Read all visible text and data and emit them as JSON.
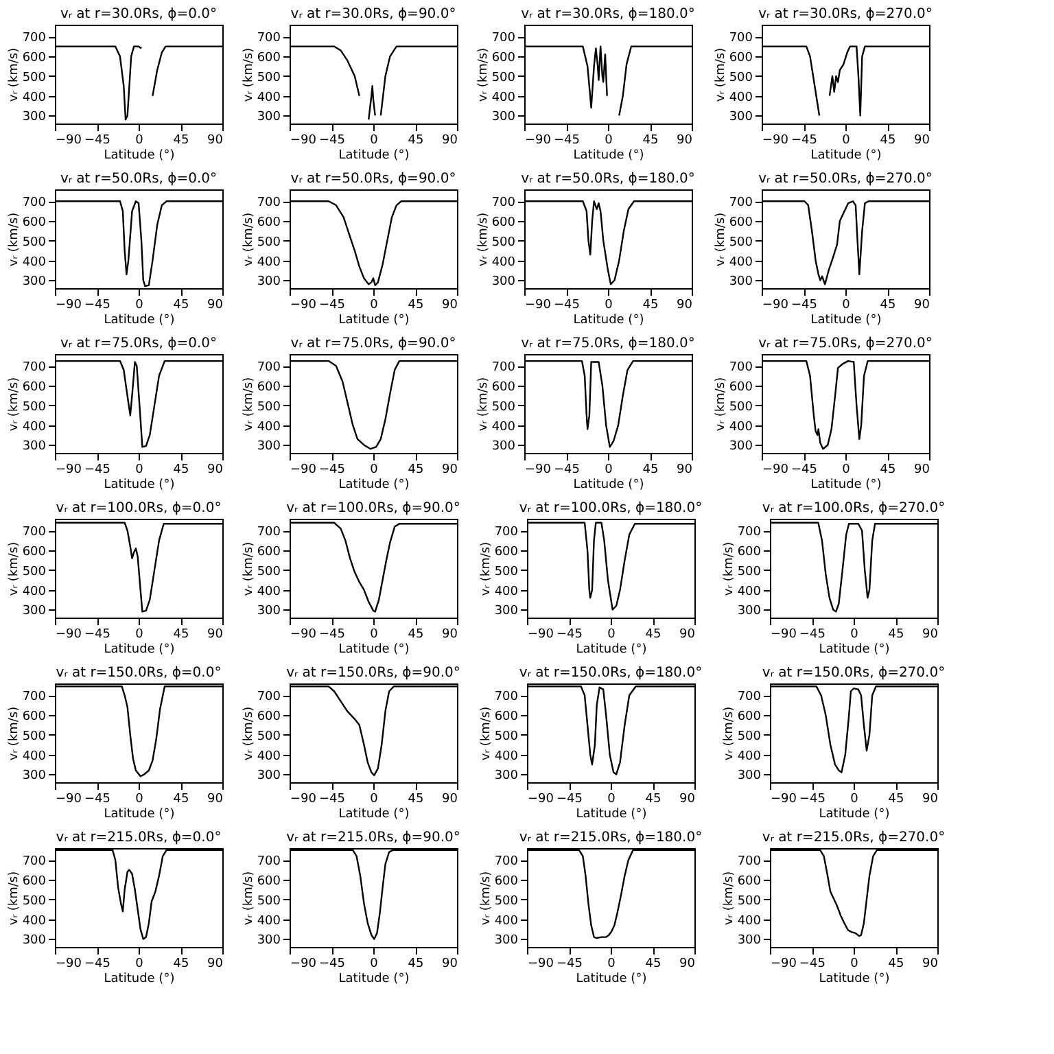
{
  "chart_data": [
    {
      "type": "line",
      "title": "vᵣ at r=30.0Rs, ϕ=0.0°",
      "xlabel": "Latitude (°)",
      "ylabel": "vᵣ (km/s)",
      "color": "#000000",
      "xlim": [
        -90,
        90
      ],
      "xticks": [
        -90,
        -45,
        0,
        45,
        90
      ],
      "ylim": [
        260,
        760
      ],
      "yticks": [
        300,
        400,
        500,
        600,
        700
      ],
      "x": [
        -90,
        -25,
        -20,
        -16,
        -14,
        -12,
        -8,
        -5,
        0,
        3,
        6,
        11,
        15,
        20,
        25,
        29,
        90
      ],
      "values": [
        650,
        650,
        600,
        450,
        280,
        300,
        600,
        650,
        650,
        640,
        null,
        null,
        400,
        530,
        620,
        650,
        650
      ]
    },
    {
      "type": "line",
      "title": "vᵣ at r=30.0Rs, ϕ=90.0°",
      "xlabel": "Latitude (°)",
      "ylabel": "vᵣ (km/s)",
      "color": "#000000",
      "xlim": [
        -90,
        90
      ],
      "xticks": [
        -90,
        -45,
        0,
        45,
        90
      ],
      "ylim": [
        260,
        760
      ],
      "yticks": [
        300,
        400,
        500,
        600,
        700
      ],
      "x": [
        -90,
        -42,
        -35,
        -28,
        -20,
        -15,
        -9,
        -5,
        -2,
        -1,
        0,
        2,
        4,
        8,
        13,
        18,
        25,
        90
      ],
      "values": [
        650,
        650,
        630,
        580,
        500,
        400,
        null,
        280,
        400,
        450,
        380,
        300,
        null,
        300,
        500,
        600,
        650,
        650
      ]
    },
    {
      "type": "line",
      "title": "vᵣ at r=30.0Rs, ϕ=180.0°",
      "xlabel": "Latitude (°)",
      "ylabel": "vᵣ (km/s)",
      "color": "#000000",
      "xlim": [
        -90,
        90
      ],
      "xticks": [
        -90,
        -45,
        0,
        45,
        90
      ],
      "ylim": [
        260,
        760
      ],
      "yticks": [
        300,
        400,
        500,
        600,
        700
      ],
      "x": [
        -90,
        -27,
        -22,
        -18,
        -15,
        -13,
        -11,
        -10,
        -8,
        -6,
        -5,
        -3,
        -1,
        1,
        7,
        12,
        16,
        20,
        25,
        90
      ],
      "values": [
        650,
        650,
        550,
        340,
        550,
        640,
        550,
        480,
        650,
        500,
        470,
        610,
        400,
        null,
        null,
        300,
        400,
        560,
        650,
        650
      ]
    },
    {
      "type": "line",
      "title": "vᵣ at r=30.0Rs, ϕ=270.0°",
      "xlabel": "Latitude (°)",
      "ylabel": "vᵣ (km/s)",
      "color": "#000000",
      "xlim": [
        -90,
        90
      ],
      "xticks": [
        -90,
        -45,
        0,
        45,
        90
      ],
      "ylim": [
        260,
        760
      ],
      "yticks": [
        300,
        400,
        500,
        600,
        700
      ],
      "x": [
        -90,
        -42,
        -38,
        -33,
        -28,
        -26,
        -21,
        -17,
        -14,
        -12,
        -10,
        -8,
        -6,
        -2,
        2,
        5,
        12,
        14,
        16,
        18,
        21,
        90
      ],
      "values": [
        650,
        650,
        600,
        450,
        300,
        null,
        null,
        400,
        500,
        420,
        500,
        470,
        530,
        560,
        620,
        650,
        650,
        500,
        300,
        600,
        650,
        650
      ]
    },
    {
      "type": "line",
      "title": "vᵣ at r=50.0Rs, ϕ=0.0°",
      "xlabel": "Latitude (°)",
      "ylabel": "vᵣ (km/s)",
      "color": "#000000",
      "xlim": [
        -90,
        90
      ],
      "xticks": [
        -90,
        -45,
        0,
        45,
        90
      ],
      "ylim": [
        260,
        760
      ],
      "yticks": [
        300,
        400,
        500,
        600,
        700
      ],
      "x": [
        -90,
        -20,
        -17,
        -15,
        -13,
        -11,
        -7,
        -3,
        0,
        3,
        5,
        7,
        11,
        15,
        20,
        25,
        30,
        90
      ],
      "values": [
        700,
        700,
        650,
        450,
        330,
        400,
        650,
        700,
        690,
        500,
        300,
        270,
        275,
        400,
        580,
        680,
        700,
        700
      ]
    },
    {
      "type": "line",
      "title": "vᵣ at r=50.0Rs, ϕ=90.0°",
      "xlabel": "Latitude (°)",
      "ylabel": "vᵣ (km/s)",
      "color": "#000000",
      "xlim": [
        -90,
        90
      ],
      "xticks": [
        -90,
        -45,
        0,
        45,
        90
      ],
      "ylim": [
        260,
        760
      ],
      "yticks": [
        300,
        400,
        500,
        600,
        700
      ],
      "x": [
        -90,
        -48,
        -40,
        -32,
        -25,
        -20,
        -15,
        -10,
        -5,
        -2,
        0,
        2,
        5,
        10,
        15,
        20,
        25,
        30,
        90
      ],
      "values": [
        700,
        700,
        680,
        620,
        520,
        450,
        370,
        310,
        280,
        290,
        310,
        275,
        290,
        380,
        500,
        620,
        680,
        700,
        700
      ]
    },
    {
      "type": "line",
      "title": "vᵣ at r=50.0Rs, ϕ=180.0°",
      "xlabel": "Latitude (°)",
      "ylabel": "vᵣ (km/s)",
      "color": "#000000",
      "xlim": [
        -90,
        90
      ],
      "xticks": [
        -90,
        -45,
        0,
        45,
        90
      ],
      "ylim": [
        260,
        760
      ],
      "yticks": [
        300,
        400,
        500,
        600,
        700
      ],
      "x": [
        -90,
        -27,
        -23,
        -21,
        -19,
        -17,
        -15,
        -12,
        -10,
        -8,
        -5,
        0,
        3,
        7,
        12,
        17,
        22,
        28,
        90
      ],
      "values": [
        700,
        700,
        650,
        500,
        430,
        600,
        700,
        660,
        690,
        650,
        500,
        350,
        280,
        300,
        400,
        550,
        660,
        700,
        700
      ]
    },
    {
      "type": "line",
      "title": "vᵣ at r=50.0Rs, ϕ=270.0°",
      "xlabel": "Latitude (°)",
      "ylabel": "vᵣ (km/s)",
      "color": "#000000",
      "xlim": [
        -90,
        90
      ],
      "xticks": [
        -90,
        -45,
        0,
        45,
        90
      ],
      "ylim": [
        260,
        760
      ],
      "yticks": [
        300,
        400,
        500,
        600,
        700
      ],
      "x": [
        -90,
        -44,
        -40,
        -36,
        -32,
        -29,
        -27,
        -25,
        -22,
        -18,
        -13,
        -9,
        -6,
        -2,
        3,
        8,
        11,
        13,
        15,
        18,
        21,
        25,
        90
      ],
      "values": [
        700,
        700,
        680,
        550,
        400,
        330,
        300,
        320,
        280,
        350,
        420,
        480,
        600,
        640,
        690,
        700,
        680,
        500,
        330,
        550,
        690,
        700,
        700
      ]
    },
    {
      "type": "line",
      "title": "vᵣ at r=75.0Rs, ϕ=0.0°",
      "xlabel": "Latitude (°)",
      "ylabel": "vᵣ (km/s)",
      "color": "#000000",
      "xlim": [
        -90,
        90
      ],
      "xticks": [
        -90,
        -45,
        0,
        45,
        90
      ],
      "ylim": [
        260,
        760
      ],
      "yticks": [
        300,
        400,
        500,
        600,
        700
      ],
      "x": [
        -90,
        -20,
        -16,
        -13,
        -9,
        -7,
        -4,
        -2,
        1,
        4,
        8,
        12,
        17,
        22,
        28,
        90
      ],
      "values": [
        725,
        725,
        680,
        580,
        450,
        550,
        720,
        700,
        500,
        290,
        295,
        350,
        500,
        650,
        725,
        725
      ]
    },
    {
      "type": "line",
      "title": "vᵣ at r=75.0Rs, ϕ=90.0°",
      "xlabel": "Latitude (°)",
      "ylabel": "vᵣ (km/s)",
      "color": "#000000",
      "xlim": [
        -90,
        90
      ],
      "xticks": [
        -90,
        -45,
        0,
        45,
        90
      ],
      "ylim": [
        260,
        760
      ],
      "yticks": [
        300,
        400,
        500,
        600,
        700
      ],
      "x": [
        -90,
        -48,
        -40,
        -33,
        -27,
        -22,
        -17,
        -10,
        -3,
        3,
        8,
        13,
        18,
        23,
        28,
        90
      ],
      "values": [
        725,
        725,
        700,
        620,
        500,
        400,
        330,
        300,
        280,
        290,
        330,
        430,
        560,
        680,
        725,
        725
      ]
    },
    {
      "type": "line",
      "title": "vᵣ at r=75.0Rs, ϕ=180.0°",
      "xlabel": "Latitude (°)",
      "ylabel": "vᵣ (km/s)",
      "color": "#000000",
      "xlim": [
        -90,
        90
      ],
      "xticks": [
        -90,
        -45,
        0,
        45,
        90
      ],
      "ylim": [
        260,
        760
      ],
      "yticks": [
        300,
        400,
        500,
        600,
        700
      ],
      "x": [
        -90,
        -28,
        -25,
        -23,
        -22,
        -20,
        -18,
        -10,
        -6,
        -2,
        2,
        6,
        11,
        16,
        21,
        27,
        90
      ],
      "values": [
        725,
        725,
        650,
        450,
        380,
        450,
        720,
        720,
        600,
        400,
        290,
        320,
        400,
        550,
        680,
        725,
        725
      ]
    },
    {
      "type": "line",
      "title": "vᵣ at r=75.0Rs, ϕ=270.0°",
      "xlabel": "Latitude (°)",
      "ylabel": "vᵣ (km/s)",
      "color": "#000000",
      "xlim": [
        -90,
        90
      ],
      "xticks": [
        -90,
        -45,
        0,
        45,
        90
      ],
      "ylim": [
        260,
        760
      ],
      "yticks": [
        300,
        400,
        500,
        600,
        700
      ],
      "x": [
        -90,
        -42,
        -38,
        -34,
        -32,
        -30,
        -29,
        -27,
        -24,
        -19,
        -15,
        -11,
        -8,
        -3,
        3,
        9,
        12,
        15,
        17,
        20,
        24,
        90
      ],
      "values": [
        725,
        725,
        650,
        450,
        370,
        350,
        380,
        310,
        280,
        300,
        380,
        550,
        690,
        710,
        725,
        720,
        500,
        330,
        400,
        650,
        725,
        725
      ]
    },
    {
      "type": "line",
      "title": "vᵣ at r=100.0Rs, ϕ=0.0°",
      "xlabel": "Latitude (°)",
      "ylabel": "vᵣ (km/s)",
      "color": "#000000",
      "xlim": [
        -90,
        90
      ],
      "xticks": [
        -90,
        -45,
        0,
        45,
        90
      ],
      "ylim": [
        260,
        760
      ],
      "yticks": [
        300,
        400,
        500,
        600,
        700
      ],
      "x": [
        -90,
        -15,
        -12,
        -9,
        -7,
        -5,
        -3,
        -1,
        2,
        4,
        8,
        12,
        17,
        22,
        27,
        90
      ],
      "values": [
        740,
        740,
        700,
        620,
        560,
        590,
        610,
        570,
        400,
        290,
        295,
        350,
        500,
        650,
        735,
        735
      ]
    },
    {
      "type": "line",
      "title": "vᵣ at r=100.0Rs, ϕ=90.0°",
      "xlabel": "Latitude (°)",
      "ylabel": "vᵣ (km/s)",
      "color": "#000000",
      "xlim": [
        -90,
        90
      ],
      "xticks": [
        -90,
        -45,
        0,
        45,
        90
      ],
      "ylim": [
        260,
        760
      ],
      "yticks": [
        300,
        400,
        500,
        600,
        700
      ],
      "x": [
        -90,
        -42,
        -35,
        -30,
        -25,
        -20,
        -15,
        -10,
        -5,
        0,
        2,
        6,
        10,
        14,
        18,
        23,
        28,
        90
      ],
      "values": [
        740,
        740,
        710,
        650,
        560,
        490,
        440,
        400,
        340,
        295,
        290,
        350,
        450,
        550,
        640,
        720,
        735,
        735
      ]
    },
    {
      "type": "line",
      "title": "vᵣ at r=100.0Rs, ϕ=180.0°",
      "xlabel": "Latitude (°)",
      "ylabel": "vᵣ (km/s)",
      "color": "#000000",
      "xlim": [
        -90,
        90
      ],
      "xticks": [
        -90,
        -45,
        0,
        45,
        90
      ],
      "ylim": [
        260,
        760
      ],
      "yticks": [
        300,
        400,
        500,
        600,
        700
      ],
      "x": [
        -90,
        -28,
        -25,
        -23,
        -22,
        -20,
        -18,
        -16,
        -10,
        -7,
        -3,
        2,
        6,
        10,
        15,
        20,
        26,
        90
      ],
      "values": [
        740,
        740,
        600,
        400,
        360,
        400,
        650,
        740,
        740,
        650,
        450,
        300,
        320,
        400,
        550,
        680,
        735,
        735
      ]
    },
    {
      "type": "line",
      "title": "vᵣ at r=100.0Rs, ϕ=270.0°",
      "xlabel": "Latitude (°)",
      "ylabel": "vᵣ (km/s)",
      "color": "#000000",
      "xlim": [
        -90,
        90
      ],
      "xticks": [
        -90,
        -45,
        0,
        45,
        90
      ],
      "ylim": [
        260,
        760
      ],
      "yticks": [
        300,
        400,
        500,
        600,
        700
      ],
      "x": [
        -90,
        -38,
        -34,
        -30,
        -26,
        -22,
        -19,
        -16,
        -12,
        -8,
        -5,
        5,
        9,
        12,
        15,
        17,
        20,
        23,
        90
      ],
      "values": [
        740,
        740,
        650,
        480,
        360,
        300,
        290,
        330,
        500,
        680,
        735,
        735,
        700,
        500,
        360,
        400,
        650,
        735,
        735
      ]
    },
    {
      "type": "line",
      "title": "vᵣ at r=150.0Rs, ϕ=0.0°",
      "xlabel": "Latitude (°)",
      "ylabel": "vᵣ (km/s)",
      "color": "#000000",
      "xlim": [
        -90,
        90
      ],
      "xticks": [
        -90,
        -45,
        0,
        45,
        90
      ],
      "ylim": [
        260,
        760
      ],
      "yticks": [
        300,
        400,
        500,
        600,
        700
      ],
      "x": [
        -90,
        -18,
        -15,
        -12,
        -9,
        -6,
        -3,
        2,
        6,
        11,
        15,
        19,
        23,
        28,
        90
      ],
      "values": [
        745,
        745,
        700,
        640,
        500,
        380,
        320,
        290,
        300,
        320,
        370,
        480,
        630,
        745,
        745
      ]
    },
    {
      "type": "line",
      "title": "vᵣ at r=150.0Rs, ϕ=90.0°",
      "xlabel": "Latitude (°)",
      "ylabel": "vᵣ (km/s)",
      "color": "#000000",
      "xlim": [
        -90,
        90
      ],
      "xticks": [
        -90,
        -45,
        0,
        45,
        90
      ],
      "ylim": [
        260,
        760
      ],
      "yticks": [
        300,
        400,
        500,
        600,
        700
      ],
      "x": [
        -90,
        -48,
        -42,
        -35,
        -28,
        -20,
        -15,
        -10,
        -6,
        -2,
        1,
        5,
        9,
        13,
        17,
        22,
        90
      ],
      "values": [
        745,
        745,
        720,
        670,
        620,
        580,
        550,
        450,
        360,
        310,
        295,
        330,
        450,
        620,
        720,
        745,
        745
      ]
    },
    {
      "type": "line",
      "title": "vᵣ at r=150.0Rs, ϕ=180.0°",
      "xlabel": "Latitude (°)",
      "ylabel": "vᵣ (km/s)",
      "color": "#000000",
      "xlim": [
        -90,
        90
      ],
      "xticks": [
        -90,
        -45,
        0,
        45,
        90
      ],
      "ylim": [
        260,
        760
      ],
      "yticks": [
        300,
        400,
        500,
        600,
        700
      ],
      "x": [
        -90,
        -32,
        -28,
        -25,
        -22,
        -20,
        -17,
        -15,
        -12,
        -8,
        -5,
        -1,
        3,
        6,
        10,
        15,
        20,
        27,
        90
      ],
      "values": [
        745,
        745,
        700,
        550,
        400,
        350,
        450,
        650,
        740,
        730,
        600,
        400,
        310,
        300,
        360,
        550,
        700,
        745,
        745
      ]
    },
    {
      "type": "line",
      "title": "vᵣ at r=150.0Rs, ϕ=270.0°",
      "xlabel": "Latitude (°)",
      "ylabel": "vᵣ (km/s)",
      "color": "#000000",
      "xlim": [
        -90,
        90
      ],
      "xticks": [
        -90,
        -45,
        0,
        45,
        90
      ],
      "ylim": [
        260,
        760
      ],
      "yticks": [
        300,
        400,
        500,
        600,
        700
      ],
      "x": [
        -90,
        -40,
        -35,
        -30,
        -25,
        -20,
        -16,
        -13,
        -9,
        -5,
        -3,
        0,
        5,
        8,
        11,
        14,
        17,
        20,
        24,
        90
      ],
      "values": [
        745,
        745,
        700,
        600,
        450,
        350,
        320,
        310,
        400,
        600,
        720,
        735,
        730,
        700,
        550,
        420,
        500,
        700,
        745,
        745
      ]
    },
    {
      "type": "line",
      "title": "vᵣ at r=215.0Rs, ϕ=0.0°",
      "xlabel": "Latitude (°)",
      "ylabel": "vᵣ (km/s)",
      "color": "#000000",
      "xlim": [
        -90,
        90
      ],
      "xticks": [
        -90,
        -45,
        0,
        45,
        90
      ],
      "ylim": [
        260,
        760
      ],
      "yticks": [
        300,
        400,
        500,
        600,
        700
      ],
      "x": [
        -90,
        -28,
        -25,
        -22,
        -19,
        -17,
        -15,
        -12,
        -10,
        -7,
        -4,
        -1,
        2,
        5,
        8,
        11,
        14,
        18,
        22,
        26,
        30,
        90
      ],
      "values": [
        750,
        750,
        700,
        560,
        480,
        440,
        550,
        640,
        650,
        630,
        550,
        450,
        350,
        300,
        310,
        380,
        490,
        540,
        620,
        720,
        750,
        750
      ]
    },
    {
      "type": "line",
      "title": "vᵣ at r=215.0Rs, ϕ=90.0°",
      "xlabel": "Latitude (°)",
      "ylabel": "vᵣ (km/s)",
      "color": "#000000",
      "xlim": [
        -90,
        90
      ],
      "xticks": [
        -90,
        -45,
        0,
        45,
        90
      ],
      "ylim": [
        260,
        760
      ],
      "yticks": [
        300,
        400,
        500,
        600,
        700
      ],
      "x": [
        -90,
        -22,
        -18,
        -14,
        -10,
        -6,
        -2,
        1,
        4,
        7,
        10,
        13,
        17,
        21,
        90
      ],
      "values": [
        750,
        750,
        720,
        620,
        480,
        380,
        320,
        300,
        330,
        430,
        560,
        680,
        740,
        750,
        750
      ]
    },
    {
      "type": "line",
      "title": "vᵣ at r=215.0Rs, ϕ=180.0°",
      "xlabel": "Latitude (°)",
      "ylabel": "vᵣ (km/s)",
      "color": "#000000",
      "xlim": [
        -90,
        90
      ],
      "xticks": [
        -90,
        -45,
        0,
        45,
        90
      ],
      "ylim": [
        260,
        760
      ],
      "yticks": [
        300,
        400,
        500,
        600,
        700
      ],
      "x": [
        -90,
        -34,
        -30,
        -27,
        -24,
        -21,
        -18,
        -15,
        -10,
        -5,
        -2,
        1,
        4,
        7,
        11,
        15,
        19,
        24,
        90
      ],
      "values": [
        750,
        750,
        720,
        620,
        480,
        370,
        310,
        305,
        310,
        310,
        320,
        340,
        370,
        430,
        520,
        620,
        700,
        750,
        750
      ]
    },
    {
      "type": "line",
      "title": "vᵣ at r=215.0Rs, ϕ=270.0°",
      "xlabel": "Latitude (°)",
      "ylabel": "vᵣ (km/s)",
      "color": "#000000",
      "xlim": [
        -90,
        90
      ],
      "xticks": [
        -90,
        -45,
        0,
        45,
        90
      ],
      "ylim": [
        260,
        760
      ],
      "yticks": [
        300,
        400,
        500,
        600,
        700
      ],
      "x": [
        -90,
        -36,
        -32,
        -28,
        -25,
        -22,
        -18,
        -14,
        -10,
        -6,
        -2,
        2,
        6,
        8,
        11,
        14,
        17,
        21,
        25,
        90
      ],
      "values": [
        750,
        750,
        720,
        620,
        540,
        510,
        470,
        420,
        380,
        345,
        335,
        330,
        315,
        320,
        380,
        500,
        620,
        720,
        750,
        750
      ]
    }
  ]
}
